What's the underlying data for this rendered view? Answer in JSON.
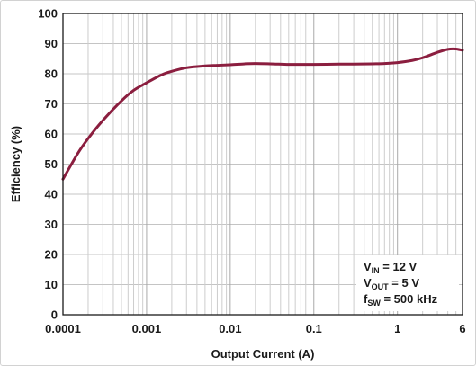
{
  "chart_data": {
    "type": "line",
    "title": "",
    "xlabel": "Output Current (A)",
    "ylabel": "Efficiency (%)",
    "x_scale": "log",
    "xlim": [
      0.0001,
      6
    ],
    "ylim": [
      0,
      100
    ],
    "grid": true,
    "y_ticks": [
      0,
      10,
      20,
      30,
      40,
      50,
      60,
      70,
      80,
      90,
      100
    ],
    "x_ticks": [
      {
        "value": 0.0001,
        "label": "0.0001"
      },
      {
        "value": 0.001,
        "label": "0.001"
      },
      {
        "value": 0.01,
        "label": "0.01"
      },
      {
        "value": 0.1,
        "label": "0.1"
      },
      {
        "value": 1,
        "label": "1"
      },
      {
        "value": 6,
        "label": "6"
      }
    ],
    "series": [
      {
        "color": "#8b1e3f",
        "x": [
          0.0001,
          0.00015,
          0.0002,
          0.0003,
          0.0005,
          0.0007,
          0.001,
          0.0015,
          0.002,
          0.003,
          0.005,
          0.007,
          0.01,
          0.015,
          0.02,
          0.03,
          0.05,
          0.07,
          0.1,
          0.2,
          0.3,
          0.5,
          0.7,
          1,
          1.5,
          2,
          3,
          4,
          5,
          6
        ],
        "y": [
          45,
          53.5,
          58.5,
          64.5,
          71,
          74.5,
          77,
          79.6,
          80.8,
          82,
          82.6,
          82.8,
          83,
          83.3,
          83.4,
          83.3,
          83.1,
          83.1,
          83.1,
          83.2,
          83.2,
          83.3,
          83.4,
          83.7,
          84.4,
          85.3,
          87.1,
          88.1,
          88.2,
          87.8
        ]
      }
    ],
    "annotation": {
      "lines": [
        {
          "base": "V",
          "sub": "IN",
          "rest": " = 12 V"
        },
        {
          "base": "V",
          "sub": "OUT",
          "rest": " = 5 V"
        },
        {
          "base": "f",
          "sub": "SW",
          "rest": " = 500 kHz"
        }
      ],
      "placement": "bottom-right"
    }
  }
}
